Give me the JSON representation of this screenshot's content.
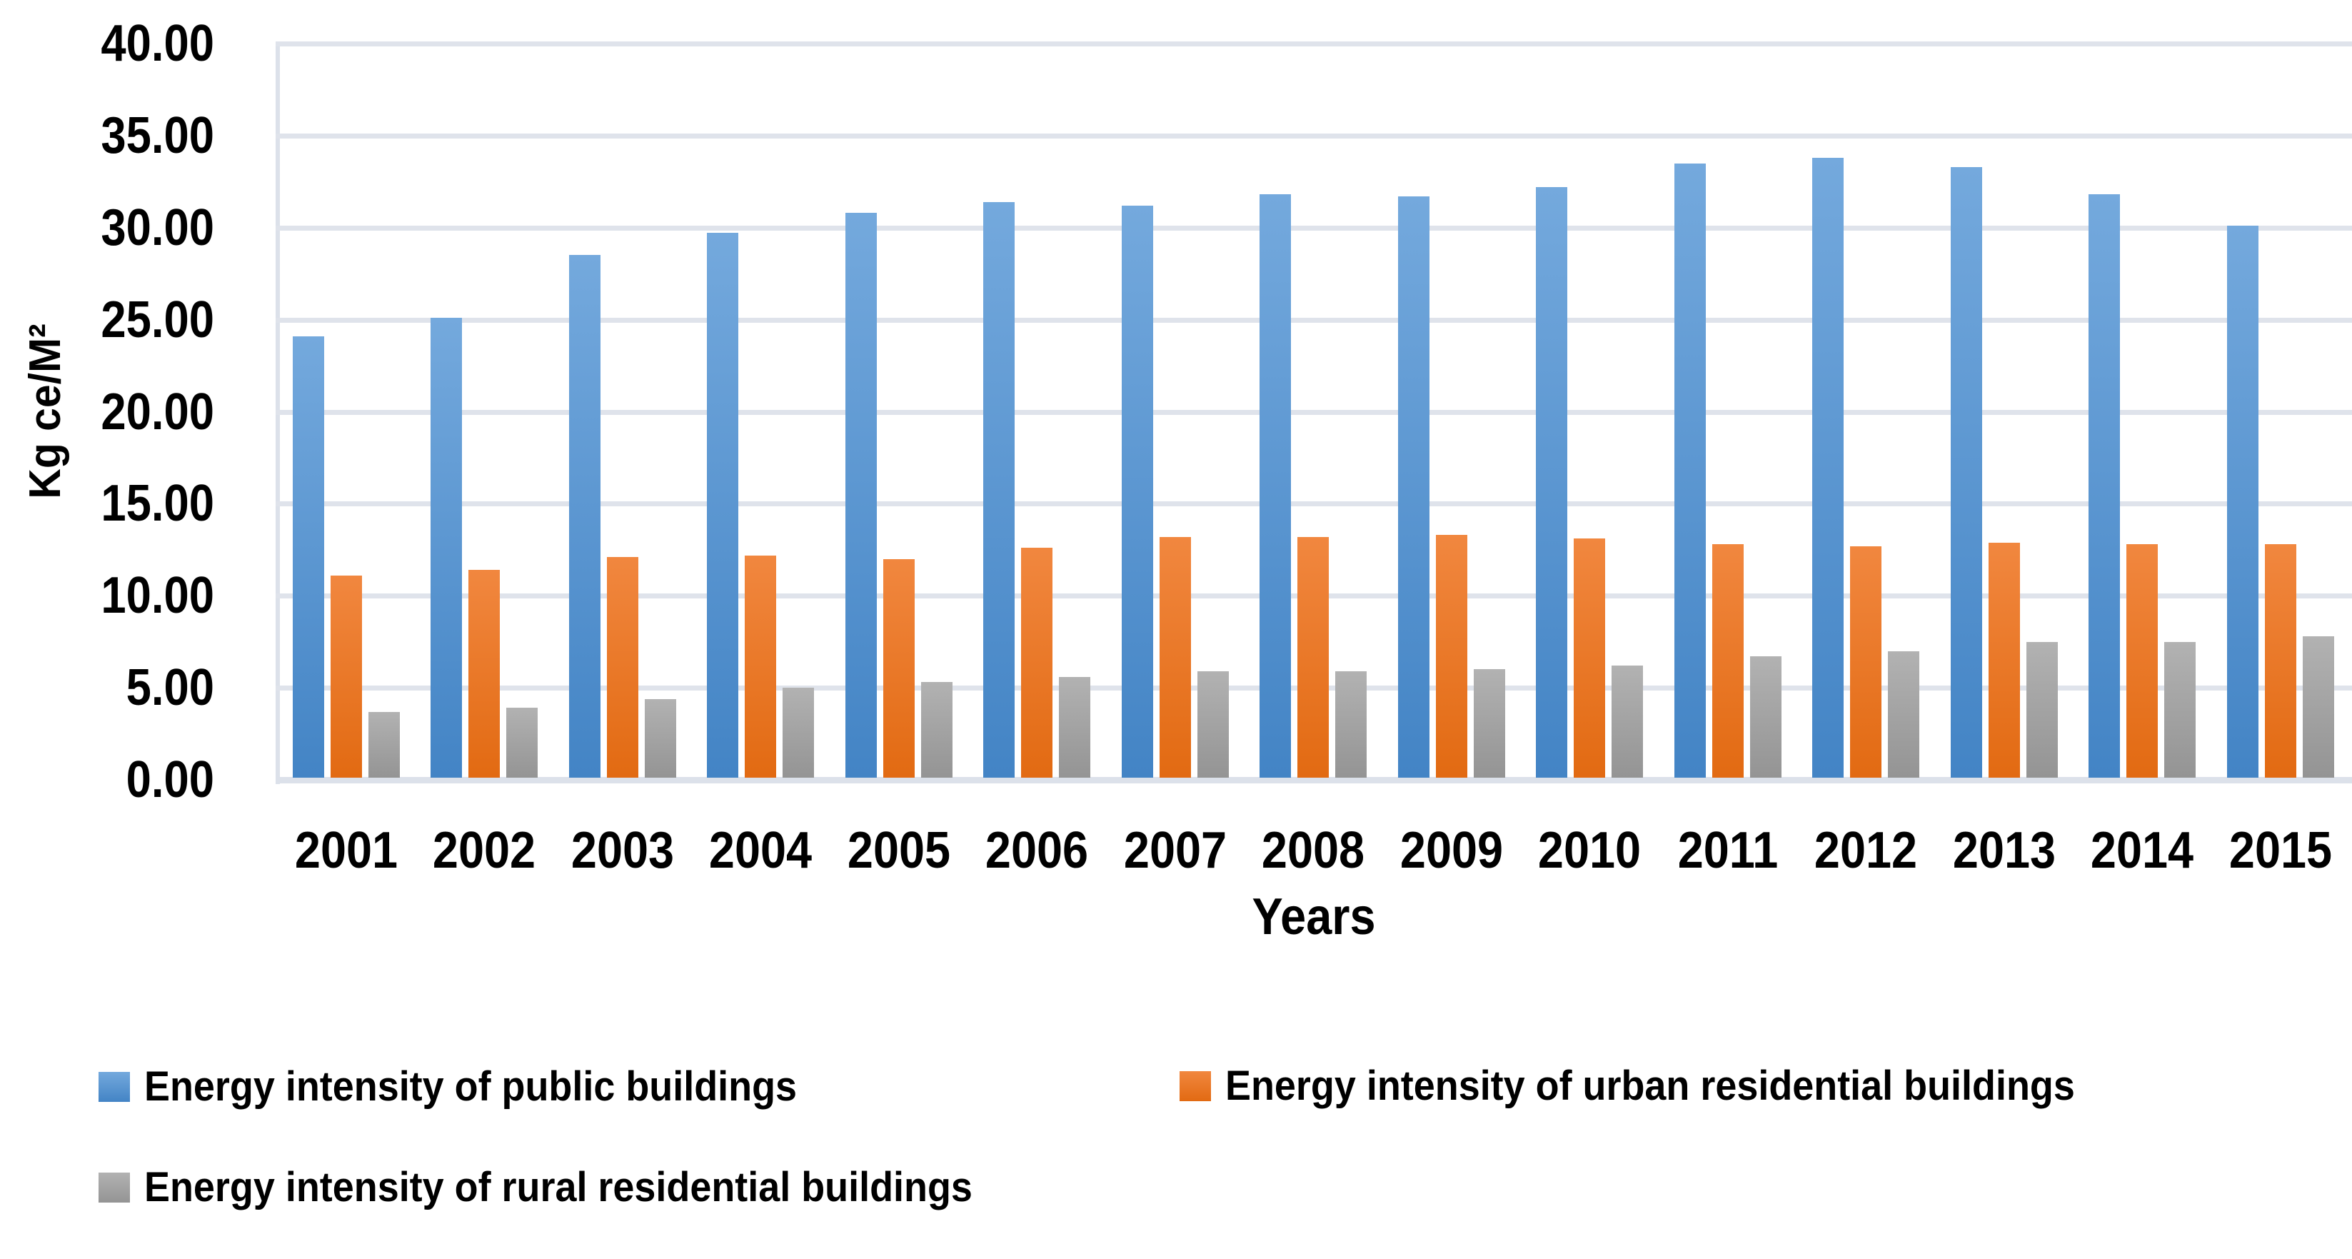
{
  "chart_data": {
    "type": "bar",
    "title": "",
    "xlabel": "Years",
    "ylabel": "Kg ce/M²",
    "ylim": [
      0,
      40
    ],
    "ytick_step": 5,
    "ytick_labels": [
      "40.00",
      "35.00",
      "30.00",
      "25.00",
      "20.00",
      "15.00",
      "10.00",
      "5.00",
      "0.00"
    ],
    "categories": [
      "2001",
      "2002",
      "2003",
      "2004",
      "2005",
      "2006",
      "2007",
      "2008",
      "2009",
      "2010",
      "2011",
      "2012",
      "2013",
      "2014",
      "2015"
    ],
    "series": [
      {
        "name": "Energy intensity of public buildings",
        "color_top": "#74A9DD",
        "color_bottom": "#4384C5",
        "values": [
          24.1,
          25.1,
          28.5,
          29.7,
          30.8,
          31.4,
          31.2,
          31.8,
          31.7,
          32.2,
          33.5,
          33.8,
          33.3,
          31.8,
          30.1
        ]
      },
      {
        "name": "Energy intensity of urban residential buildings",
        "color_top": "#F1873F",
        "color_bottom": "#E26A12",
        "values": [
          11.1,
          11.4,
          12.1,
          12.2,
          12.0,
          12.6,
          13.2,
          13.2,
          13.3,
          13.1,
          12.8,
          12.7,
          12.9,
          12.8,
          12.8
        ]
      },
      {
        "name": "Energy intensity of rural residential buildings",
        "color_top": "#B2B2B2",
        "color_bottom": "#949494",
        "values": [
          3.7,
          3.9,
          4.4,
          5.0,
          5.3,
          5.6,
          5.9,
          5.9,
          6.0,
          6.2,
          6.7,
          7.0,
          7.5,
          7.5,
          7.8
        ]
      }
    ],
    "grid": true,
    "gridline_color": "#DFE3EB",
    "axisline_color": "#DCE1EA",
    "legend_position": "bottom"
  }
}
